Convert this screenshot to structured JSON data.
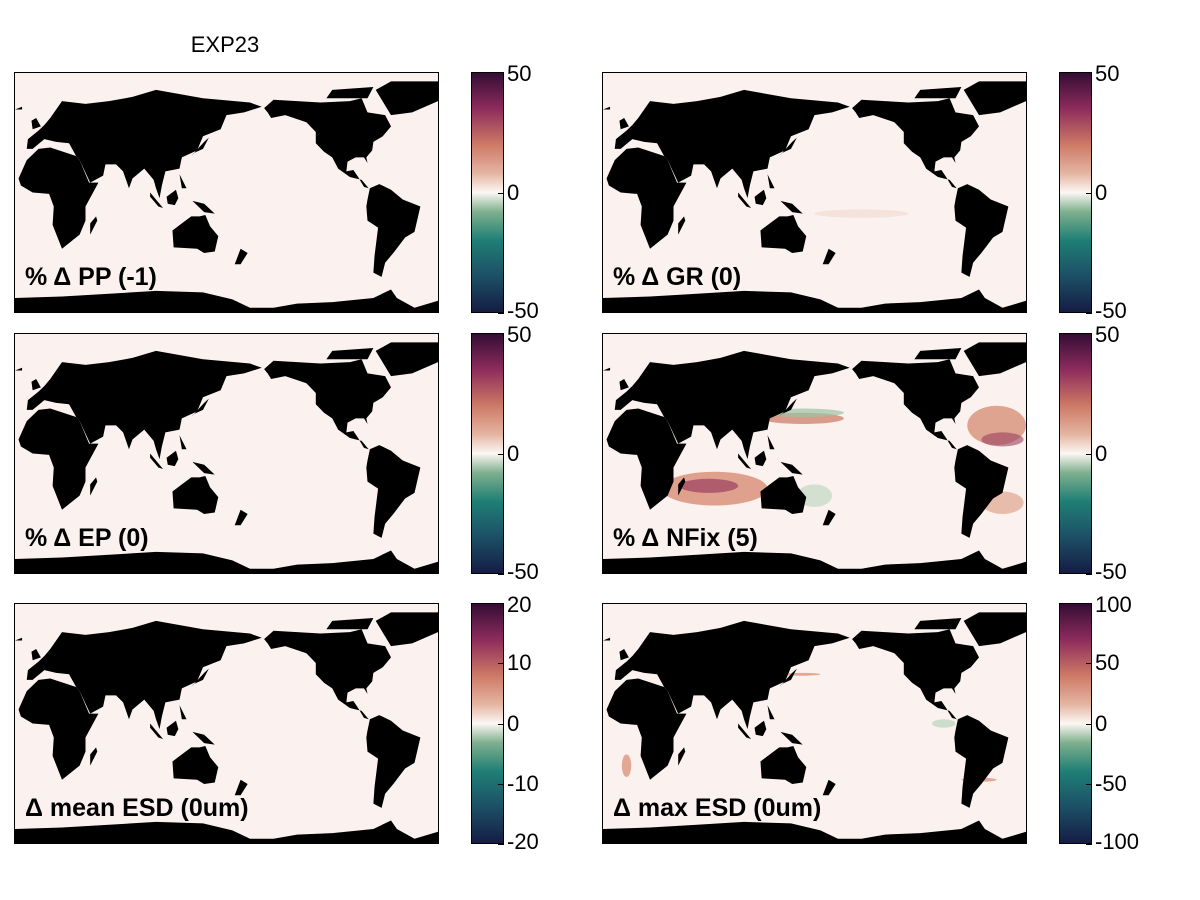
{
  "figure_title": "EXP23",
  "colormap": [
    "#151d44",
    "#1c4f66",
    "#1f7f75",
    "#7fb08f",
    "#fcf7f3",
    "#e4b5a2",
    "#cd7a66",
    "#8e2c5c",
    "#340d35"
  ],
  "land_color": "#000000",
  "ocean_color": "#fbf2ef",
  "panels": [
    {
      "label": "% Δ PP (-1)",
      "ticks": [
        "50",
        "0",
        "-50"
      ],
      "range": [
        -50,
        50
      ]
    },
    {
      "label": "% Δ GR (0)",
      "ticks": [
        "50",
        "0",
        "-50"
      ],
      "range": [
        -50,
        50
      ]
    },
    {
      "label": "% Δ EP (0)",
      "ticks": [
        "50",
        "0",
        "-50"
      ],
      "range": [
        -50,
        50
      ]
    },
    {
      "label": "% Δ NFix (5)",
      "ticks": [
        "50",
        "0",
        "-50"
      ],
      "range": [
        -50,
        50
      ]
    },
    {
      "label": "Δ mean ESD (0um)",
      "ticks": [
        "20",
        "10",
        "0",
        "-10",
        "-20"
      ],
      "range": [
        -20,
        20
      ]
    },
    {
      "label": "Δ max ESD (0um)",
      "ticks": [
        "100",
        "50",
        "0",
        "-50",
        "-100"
      ],
      "range": [
        -100,
        100
      ]
    }
  ]
}
